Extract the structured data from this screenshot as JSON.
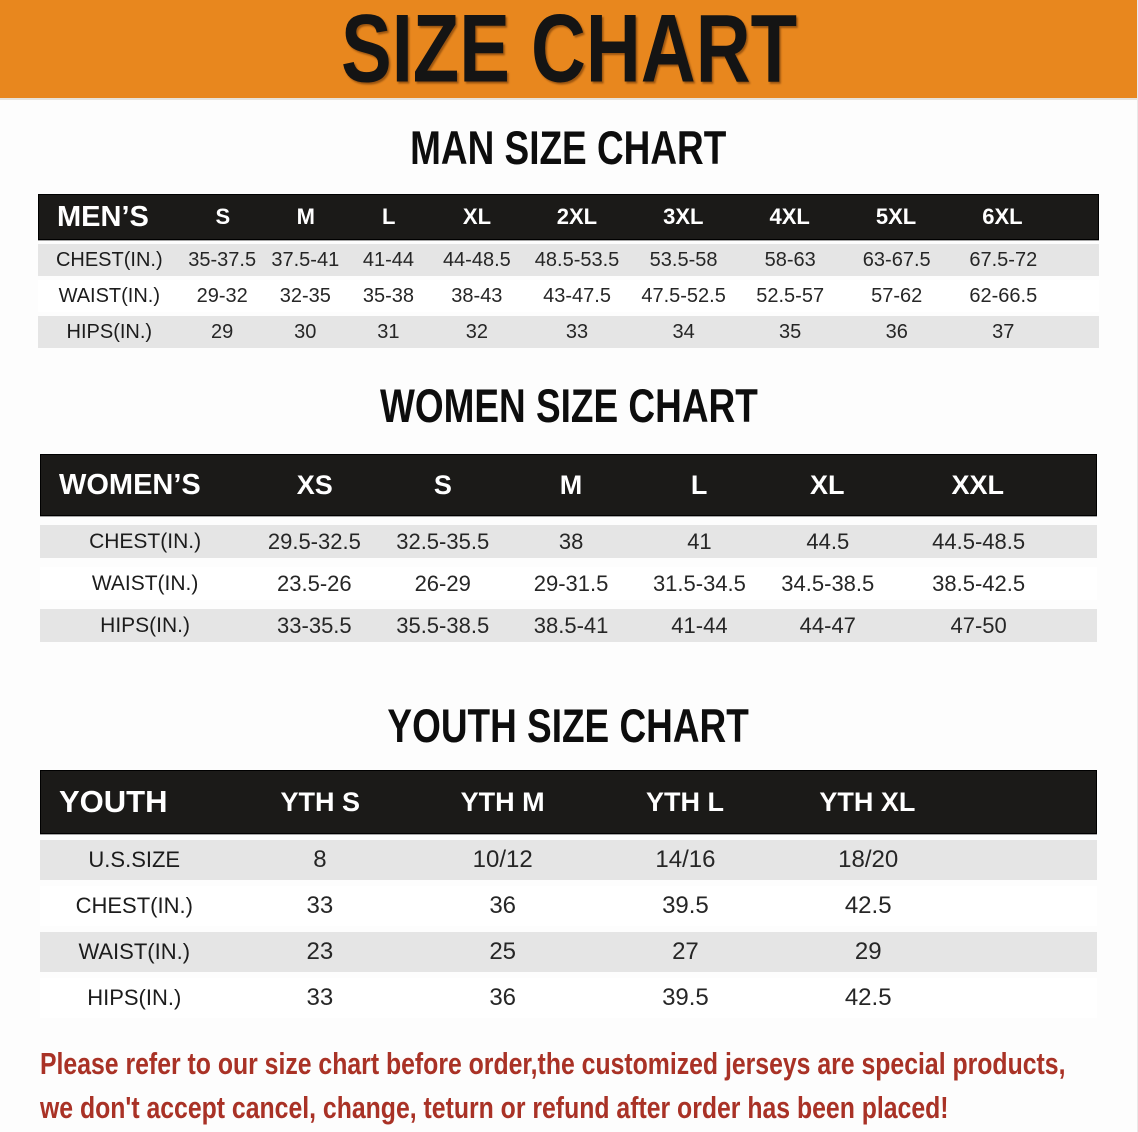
{
  "banner": {
    "title": "SIZE CHART",
    "bg_color": "#E8871E",
    "text_color": "#141414"
  },
  "sections": [
    {
      "heading": "MAN SIZE CHART",
      "label": "MEN’S",
      "columns": [
        "S",
        "M",
        "L",
        "XL",
        "2XL",
        "3XL",
        "4XL",
        "5XL",
        "6XL"
      ],
      "rows": [
        {
          "label": "CHEST(IN.)",
          "values": [
            "35-37.5",
            "37.5-41",
            "41-44",
            "44-48.5",
            "48.5-53.5",
            "53.5-58",
            "58-63",
            "63-67.5",
            "67.5-72"
          ]
        },
        {
          "label": "WAIST(IN.)",
          "values": [
            "29-32",
            "32-35",
            "35-38",
            "38-43",
            "43-47.5",
            "47.5-52.5",
            "52.5-57",
            "57-62",
            "62-66.5"
          ]
        },
        {
          "label": "HIPS(IN.)",
          "values": [
            "29",
            "30",
            "31",
            "32",
            "33",
            "34",
            "35",
            "36",
            "37"
          ]
        }
      ]
    },
    {
      "heading": "WOMEN SIZE CHART",
      "label": "WOMEN’S",
      "columns": [
        "XS",
        "S",
        "M",
        "L",
        "XL",
        "XXL"
      ],
      "rows": [
        {
          "label": "CHEST(IN.)",
          "values": [
            "29.5-32.5",
            "32.5-35.5",
            "38",
            "41",
            "44.5",
            "44.5-48.5"
          ]
        },
        {
          "label": "WAIST(IN.)",
          "values": [
            "23.5-26",
            "26-29",
            "29-31.5",
            "31.5-34.5",
            "34.5-38.5",
            "38.5-42.5"
          ]
        },
        {
          "label": "HIPS(IN.)",
          "values": [
            "33-35.5",
            "35.5-38.5",
            "38.5-41",
            "41-44",
            "44-47",
            "47-50"
          ]
        }
      ]
    },
    {
      "heading": "YOUTH SIZE CHART",
      "label": "YOUTH",
      "columns": [
        "YTH S",
        "YTH M",
        "YTH L",
        "YTH XL"
      ],
      "rows": [
        {
          "label": "U.S.SIZE",
          "values": [
            "8",
            "10/12",
            "14/16",
            "18/20"
          ]
        },
        {
          "label": "CHEST(IN.)",
          "values": [
            "33",
            "36",
            "39.5",
            "42.5"
          ]
        },
        {
          "label": "WAIST(IN.)",
          "values": [
            "23",
            "25",
            "27",
            "29"
          ]
        },
        {
          "label": "HIPS(IN.)",
          "values": [
            "33",
            "36",
            "39.5",
            "42.5"
          ]
        }
      ]
    }
  ],
  "disclaimer": {
    "lines": [
      "Please refer to our size chart before order,the customized jerseys are special products,",
      "we don't accept cancel, change, teturn or refund after order has been placed!"
    ],
    "color": "#A93226"
  },
  "colors": {
    "banner_orange": "#E8871E",
    "header_black": "#1B1A18",
    "stripe_gray": "#E5E5E5"
  }
}
